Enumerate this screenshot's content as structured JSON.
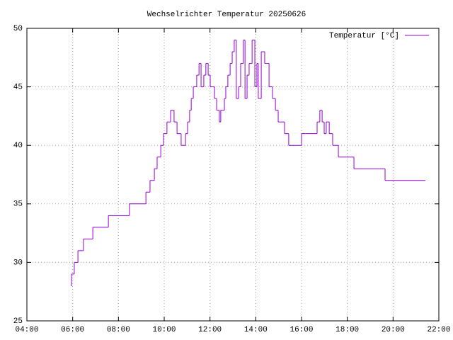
{
  "chart_data": {
    "type": "line",
    "step": "post",
    "title": "Wechselrichter Temperatur 20250626",
    "series": [
      {
        "name": "Temperatur [°C]",
        "color": "#9400d3",
        "x": [
          5.92,
          5.95,
          6.07,
          6.23,
          6.47,
          6.88,
          7.56,
          8.48,
          9.2,
          9.38,
          9.57,
          9.69,
          9.85,
          9.97,
          10.12,
          10.28,
          10.43,
          10.56,
          10.74,
          10.93,
          11.02,
          11.11,
          11.18,
          11.27,
          11.42,
          11.52,
          11.61,
          11.73,
          11.82,
          11.92,
          12.01,
          12.2,
          12.29,
          12.41,
          12.47,
          12.63,
          12.69,
          12.78,
          12.88,
          12.97,
          13.06,
          13.15,
          13.25,
          13.34,
          13.46,
          13.53,
          13.62,
          13.71,
          13.84,
          13.96,
          14.05,
          14.11,
          14.24,
          14.39,
          14.58,
          14.73,
          14.86,
          14.98,
          15.26,
          15.44,
          16.0,
          16.68,
          16.8,
          16.9,
          16.99,
          17.08,
          17.21,
          17.36,
          17.61,
          18.29,
          19.65,
          21.41
        ],
        "values": [
          28,
          29,
          30,
          31,
          32,
          33,
          34,
          35,
          36,
          37,
          38,
          39,
          40,
          41,
          42,
          43,
          42,
          41,
          40,
          41,
          42,
          43,
          44,
          45,
          46,
          47,
          45,
          46,
          47,
          46,
          45,
          44,
          43,
          42,
          43,
          44,
          45,
          46,
          47,
          48,
          49,
          44,
          45,
          47,
          49,
          44,
          46,
          47,
          49,
          45,
          47,
          44,
          48,
          47,
          45,
          44,
          43,
          42,
          41,
          40,
          41,
          42,
          43,
          42,
          41,
          42,
          41,
          40,
          39,
          38,
          37,
          37
        ]
      }
    ],
    "xlim": [
      4,
      22
    ],
    "xticks": [
      {
        "value": 4,
        "label": "04:00"
      },
      {
        "value": 6,
        "label": "06:00"
      },
      {
        "value": 8,
        "label": "08:00"
      },
      {
        "value": 10,
        "label": "10:00"
      },
      {
        "value": 12,
        "label": "12:00"
      },
      {
        "value": 14,
        "label": "14:00"
      },
      {
        "value": 16,
        "label": "16:00"
      },
      {
        "value": 18,
        "label": "18:00"
      },
      {
        "value": 20,
        "label": "20:00"
      },
      {
        "value": 22,
        "label": "22:00"
      }
    ],
    "ylim": [
      25,
      50
    ],
    "yticks": [
      25,
      30,
      35,
      40,
      45,
      50
    ],
    "grid": true,
    "legend": "top-right"
  }
}
